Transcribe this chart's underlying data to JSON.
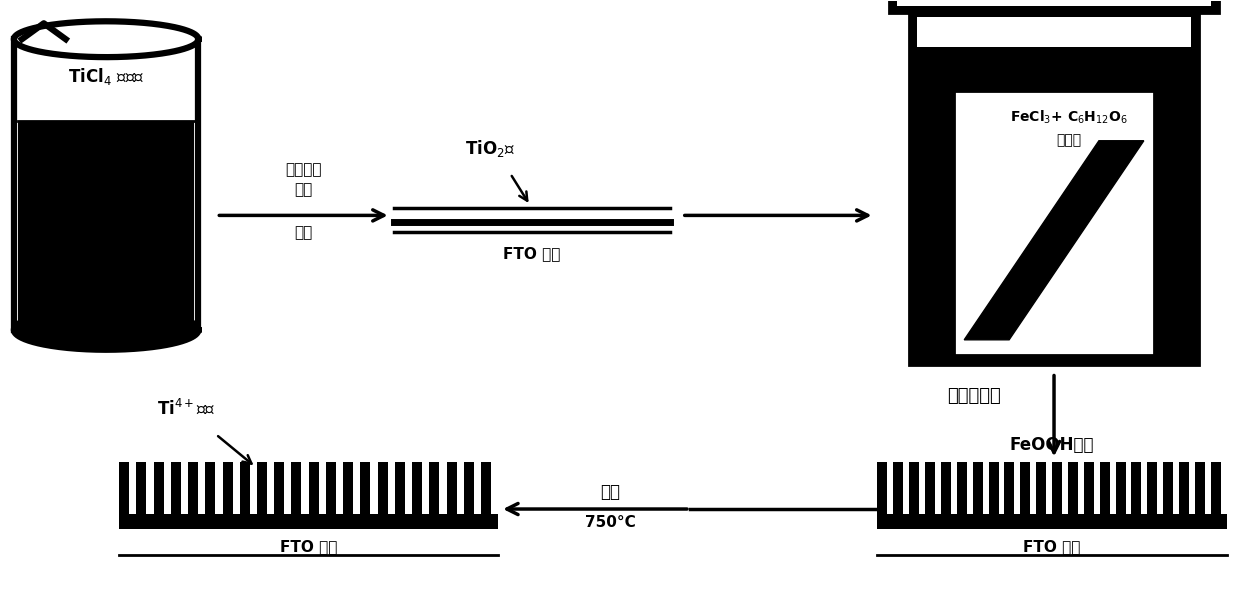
{
  "bg_color": "#ffffff",
  "text_color": "#000000",
  "beaker_label": "TiCl$_4$ 水溶液",
  "arrow1_label_line1": "去离子水",
  "arrow1_label_line2": "冲洗",
  "arrow1_label_line3": "退火",
  "fto_label1": "FTO 玻璃",
  "tio2_label": "TiO$_2$层",
  "autoclave_label": "水热反应釜",
  "autoclave_line1": "FeCl$_3$+ C$_6$H$_{12}$O$_6$",
  "autoclave_line2": "水溶液",
  "feooh_label": "FeOOH薄膜",
  "fto_label2": "FTO 玻璃",
  "anneal_label_top": "退火",
  "anneal_label_bot": "750°C",
  "ti_diffuse_label": "Ti$^{4+}$扩散",
  "fto_label3": "FTO 玻璃"
}
